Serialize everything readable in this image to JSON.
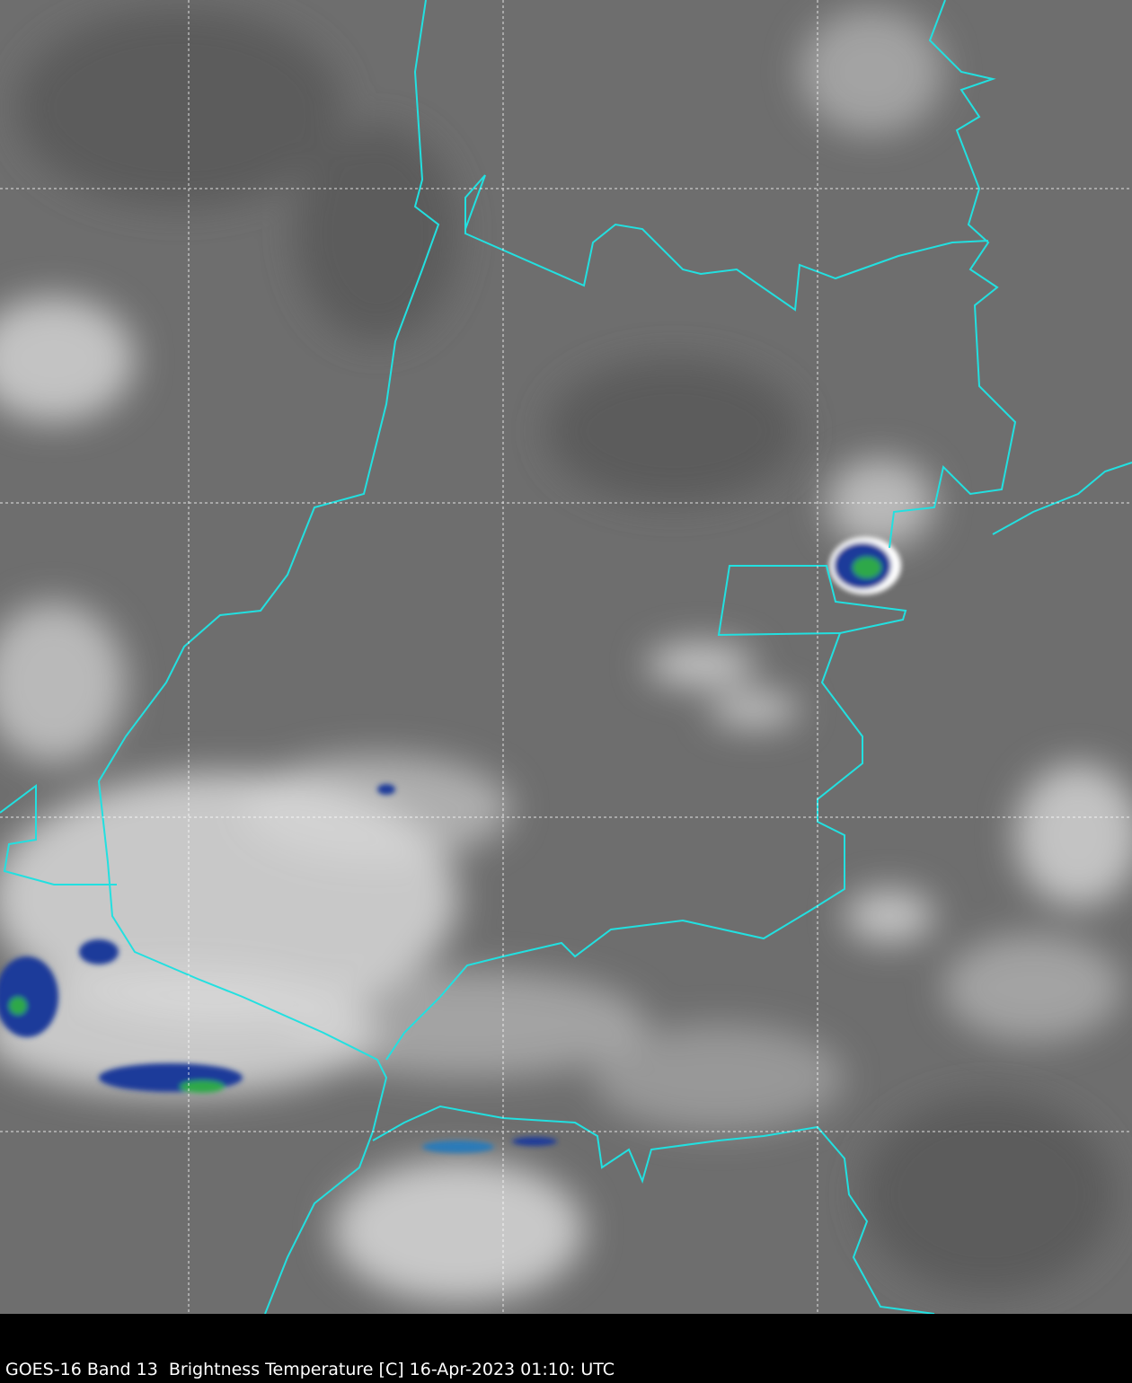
{
  "caption": "GOES-16 Band 13  Brightness Temperature [C] 16-Apr-2023 01:10: UTC",
  "colors": {
    "background_ir": "#6e6e6e",
    "border": "#22e0e0",
    "cold_cloud_blue": "#1a3a9a",
    "coldest_green": "#2fa84a",
    "gridline": "#ffffff",
    "frame": "#000000"
  },
  "layers": [
    "infrared-imagery",
    "political-borders",
    "lat-lon-grid"
  ]
}
